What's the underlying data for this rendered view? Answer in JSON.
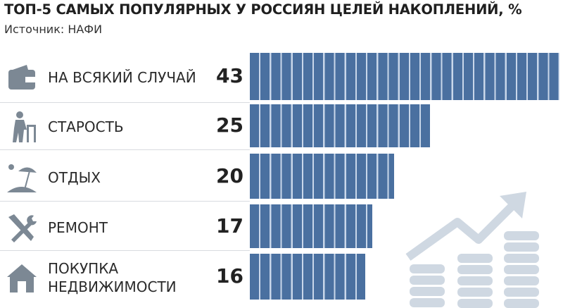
{
  "colors": {
    "bar": "#4a70a0",
    "icon": "#7c8894",
    "deco": "#cfd8e2"
  },
  "chart_data": {
    "type": "bar",
    "title": "ТОП-5 САМЫХ ПОПУЛЯРНЫХ У РОССИЯН ЦЕЛЕЙ НАКОПЛЕНИЙ, %",
    "subtitle": "Источник: НАФИ",
    "categories": [
      "НА ВСЯКИЙ СЛУЧАЙ",
      "СТАРОСТЬ",
      "ОТДЫХ",
      "РЕМОНТ",
      "ПОКУПКА НЕДВИЖИМОСТИ"
    ],
    "category_lines": [
      [
        "НА ВСЯКИЙ СЛУЧАЙ"
      ],
      [
        "СТАРОСТЬ"
      ],
      [
        "ОТДЫХ"
      ],
      [
        "РЕМОНТ"
      ],
      [
        "ПОКУПКА",
        "НЕДВИЖИМОСТИ"
      ]
    ],
    "icons": [
      "wallet-icon",
      "elderly-person-icon",
      "beach-umbrella-icon",
      "repair-tools-icon",
      "house-icon"
    ],
    "values": [
      43,
      25,
      20,
      17,
      16
    ],
    "value_labels": [
      "43",
      "25",
      "20",
      "17",
      "16"
    ],
    "xlim": [
      0,
      43
    ],
    "orientation": "horizontal",
    "grid": false
  }
}
